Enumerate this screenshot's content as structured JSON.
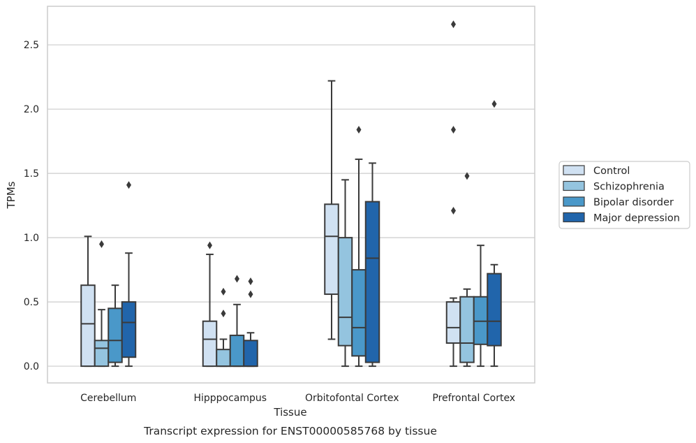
{
  "chart_data": {
    "type": "box",
    "xlabel": "Tissue",
    "ylabel": "TPMs",
    "caption": "Transcript expression for ENST00000585768 by tissue",
    "ylim": [
      -0.13,
      2.8
    ],
    "yticks": [
      0.0,
      0.5,
      1.0,
      1.5,
      2.0,
      2.5
    ],
    "ytick_labels": [
      "0.0",
      "0.5",
      "1.0",
      "1.5",
      "2.0",
      "2.5"
    ],
    "grid": true,
    "legend_position": "right-outside",
    "categories": [
      "Cerebellum",
      "Hipppocampus",
      "Orbitofontal Cortex",
      "Prefrontal Cortex"
    ],
    "series": [
      {
        "name": "Control",
        "color": "#d0e1f2",
        "boxes": [
          {
            "whislo": 0.0,
            "q1": 0.0,
            "med": 0.33,
            "q3": 0.63,
            "whishi": 1.01,
            "fliers": []
          },
          {
            "whislo": 0.0,
            "q1": 0.0,
            "med": 0.21,
            "q3": 0.35,
            "whishi": 0.87,
            "fliers": [
              0.94
            ]
          },
          {
            "whislo": 0.21,
            "q1": 0.56,
            "med": 1.01,
            "q3": 1.26,
            "whishi": 2.22,
            "fliers": []
          },
          {
            "whislo": 0.0,
            "q1": 0.18,
            "med": 0.3,
            "q3": 0.5,
            "whishi": 0.53,
            "fliers": [
              1.21,
              1.84,
              2.66
            ]
          }
        ]
      },
      {
        "name": "Schizophrenia",
        "color": "#94c4df",
        "boxes": [
          {
            "whislo": 0.0,
            "q1": 0.0,
            "med": 0.14,
            "q3": 0.2,
            "whishi": 0.44,
            "fliers": [
              0.95
            ]
          },
          {
            "whislo": 0.0,
            "q1": 0.0,
            "med": 0.0,
            "q3": 0.13,
            "whishi": 0.21,
            "fliers": [
              0.41,
              0.58
            ]
          },
          {
            "whislo": 0.0,
            "q1": 0.16,
            "med": 0.38,
            "q3": 1.0,
            "whishi": 1.45,
            "fliers": []
          },
          {
            "whislo": 0.0,
            "q1": 0.03,
            "med": 0.18,
            "q3": 0.54,
            "whishi": 0.6,
            "fliers": [
              1.48
            ]
          }
        ]
      },
      {
        "name": "Bipolar disorder",
        "color": "#4a98c9",
        "boxes": [
          {
            "whislo": 0.0,
            "q1": 0.03,
            "med": 0.2,
            "q3": 0.45,
            "whishi": 0.63,
            "fliers": []
          },
          {
            "whislo": 0.0,
            "q1": 0.0,
            "med": 0.0,
            "q3": 0.24,
            "whishi": 0.48,
            "fliers": [
              0.68
            ]
          },
          {
            "whislo": 0.0,
            "q1": 0.08,
            "med": 0.3,
            "q3": 0.75,
            "whishi": 1.61,
            "fliers": [
              1.84
            ]
          },
          {
            "whislo": 0.0,
            "q1": 0.17,
            "med": 0.35,
            "q3": 0.54,
            "whishi": 0.94,
            "fliers": []
          }
        ]
      },
      {
        "name": "Major depression",
        "color": "#2165ab",
        "boxes": [
          {
            "whislo": 0.0,
            "q1": 0.07,
            "med": 0.34,
            "q3": 0.5,
            "whishi": 0.88,
            "fliers": [
              1.41
            ]
          },
          {
            "whislo": 0.0,
            "q1": 0.0,
            "med": 0.0,
            "q3": 0.2,
            "whishi": 0.26,
            "fliers": [
              0.56,
              0.66
            ]
          },
          {
            "whislo": 0.0,
            "q1": 0.03,
            "med": 0.84,
            "q3": 1.28,
            "whishi": 1.58,
            "fliers": []
          },
          {
            "whislo": 0.0,
            "q1": 0.16,
            "med": 0.35,
            "q3": 0.72,
            "whishi": 0.79,
            "fliers": [
              2.04
            ]
          }
        ]
      }
    ]
  }
}
